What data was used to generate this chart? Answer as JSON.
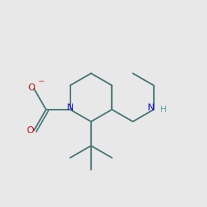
{
  "bg": "#e8e8e8",
  "bond_color": "#4a7878",
  "N_color": "#1212cc",
  "H_color": "#5a9898",
  "O_color": "#cc1212",
  "lw": 1.6,
  "font_size_N": 10,
  "font_size_O": 10,
  "font_size_H": 9,
  "xlim": [
    1.0,
    9.5
  ],
  "ylim": [
    2.0,
    8.5
  ]
}
